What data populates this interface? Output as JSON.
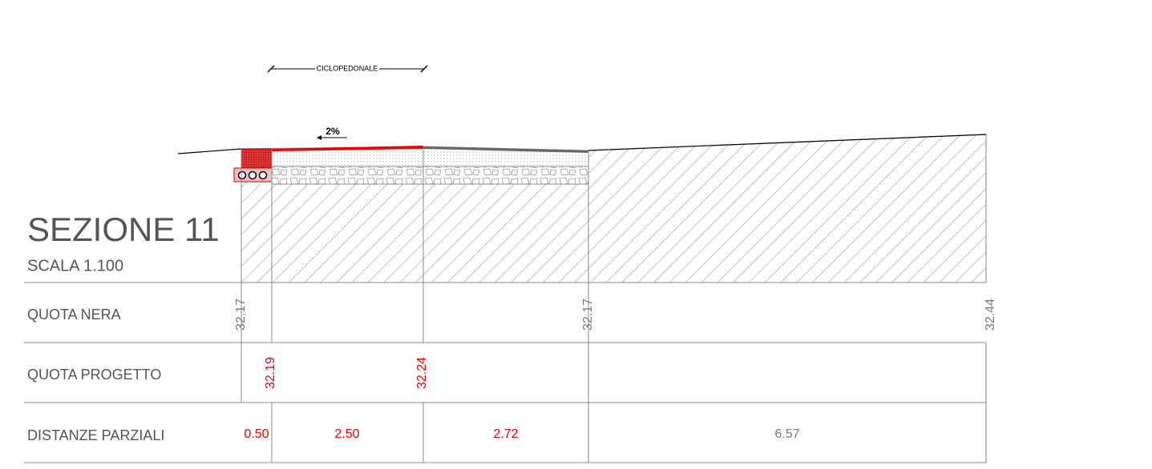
{
  "title": "SEZIONE 11",
  "scale": "SCALA 1.100",
  "dimension_label": "CICLOPEDONALE",
  "slope": "2%",
  "table": {
    "rows": [
      {
        "label": "QUOTA  NERA",
        "values": [
          "32.17",
          "32.17",
          "32.44"
        ]
      },
      {
        "label": "QUOTA  PROGETTO",
        "values": [
          "32.19",
          "32.24"
        ]
      },
      {
        "label": "DISTANZE PARZIALI",
        "values": [
          "0.50",
          "2.50",
          "2.72",
          "6.57"
        ]
      }
    ]
  }
}
